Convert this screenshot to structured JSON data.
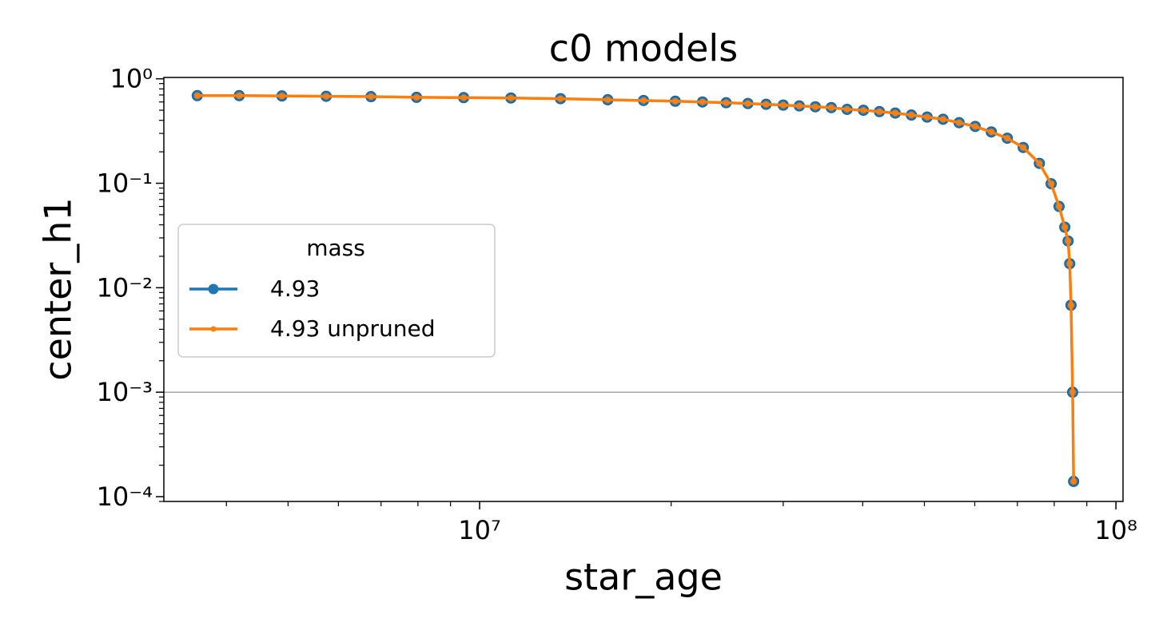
{
  "chart_data": {
    "type": "line",
    "title": "c0 models",
    "xlabel": "star_age",
    "ylabel": "center_h1",
    "log_x": true,
    "log_y": true,
    "xlim": [
      3190000.0,
      102600000.0
    ],
    "ylim": [
      9e-05,
      1.03
    ],
    "xticks": [
      {
        "value": 10000000,
        "label": "10⁷"
      },
      {
        "value": 100000000,
        "label": "10⁸"
      }
    ],
    "yticks": [
      {
        "value": 0.0001,
        "label": "10⁻⁴"
      },
      {
        "value": 0.001,
        "label": "10⁻³"
      },
      {
        "value": 0.01,
        "label": "10⁻²"
      },
      {
        "value": 0.1,
        "label": "10⁻¹"
      },
      {
        "value": 1,
        "label": "10⁰"
      }
    ],
    "reference_line": 0.001,
    "legend_title": "mass",
    "legend": "center left",
    "x": [
      3600000.0,
      4190000.0,
      4890000.0,
      5740000.0,
      6750000.0,
      7960000.0,
      9440000.0,
      11200000.0,
      13400000.0,
      15900000.0,
      18100000.0,
      20300000.0,
      22400000.0,
      24400000.0,
      26400000.0,
      28200000.0,
      30000000.0,
      31800000.0,
      33700000.0,
      35700000.0,
      37800000.0,
      40100000.0,
      42500000.0,
      45000000.0,
      47700000.0,
      50500000.0,
      53500000.0,
      56700000.0,
      60100000.0,
      63700000.0,
      67500000.0,
      71500000.0,
      75800000.0,
      79100000.0,
      81400000.0,
      83100000.0,
      84100000.0,
      84600000.0,
      85000000.0,
      85500000.0,
      85800000.0
    ],
    "series": [
      {
        "name": "4.93",
        "color": "#1f77b4",
        "values": [
          0.69,
          0.69,
          0.685,
          0.68,
          0.675,
          0.665,
          0.66,
          0.655,
          0.645,
          0.63,
          0.62,
          0.61,
          0.6,
          0.59,
          0.58,
          0.57,
          0.56,
          0.55,
          0.54,
          0.53,
          0.51,
          0.5,
          0.485,
          0.47,
          0.45,
          0.43,
          0.41,
          0.38,
          0.35,
          0.31,
          0.27,
          0.22,
          0.155,
          0.099,
          0.06,
          0.038,
          0.028,
          0.017,
          0.0068,
          0.001,
          0.00014
        ]
      },
      {
        "name": "4.93 unpruned",
        "color": "#ff7f0e",
        "values": [
          0.69,
          0.69,
          0.685,
          0.68,
          0.675,
          0.665,
          0.66,
          0.655,
          0.645,
          0.63,
          0.62,
          0.61,
          0.6,
          0.59,
          0.58,
          0.57,
          0.56,
          0.55,
          0.54,
          0.53,
          0.51,
          0.5,
          0.485,
          0.47,
          0.45,
          0.43,
          0.41,
          0.38,
          0.35,
          0.31,
          0.27,
          0.22,
          0.155,
          0.099,
          0.06,
          0.038,
          0.028,
          0.017,
          0.0068,
          0.001,
          0.00014
        ]
      }
    ]
  }
}
